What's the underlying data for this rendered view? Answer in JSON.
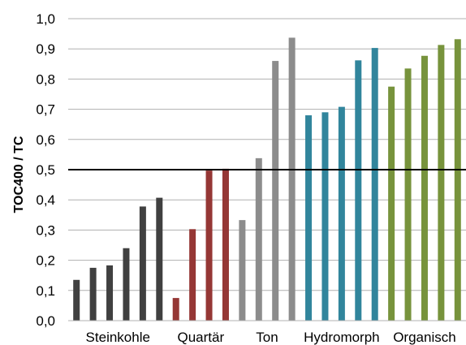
{
  "chart_data": {
    "type": "bar",
    "ylabel": "TOC400 / TC",
    "ylim": [
      0,
      1.0
    ],
    "yticks": [
      "0,0",
      "0,1",
      "0,2",
      "0,3",
      "0,4",
      "0,5",
      "0,6",
      "0,7",
      "0,8",
      "0,9",
      "1,0"
    ],
    "grid": true,
    "reference_line": 0.5,
    "groups": [
      {
        "label": "Steinkohle",
        "color": "#404040",
        "values": [
          0.135,
          0.175,
          0.183,
          0.24,
          0.378,
          0.407
        ]
      },
      {
        "label": "Quartär",
        "color": "#953735",
        "values": [
          0.075,
          0.303,
          0.497,
          0.503
        ]
      },
      {
        "label": "Ton",
        "color": "#8c8c8c",
        "values": [
          0.333,
          0.538,
          0.86,
          0.937
        ]
      },
      {
        "label": "Hydromorph",
        "color": "#31859c",
        "values": [
          0.68,
          0.69,
          0.708,
          0.862,
          0.903
        ]
      },
      {
        "label": "Organisch",
        "color": "#77933c",
        "values": [
          0.775,
          0.835,
          0.877,
          0.913,
          0.932
        ]
      }
    ]
  }
}
